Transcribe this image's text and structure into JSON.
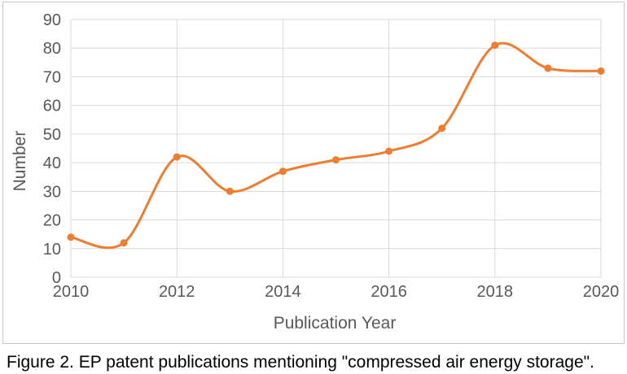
{
  "chart_data": {
    "type": "line",
    "title": "",
    "xlabel": "Publication Year",
    "ylabel": "Number",
    "x": [
      2010,
      2011,
      2012,
      2013,
      2014,
      2015,
      2016,
      2017,
      2018,
      2019,
      2020
    ],
    "values": [
      14,
      12,
      42,
      30,
      37,
      41,
      44,
      52,
      81,
      73,
      72
    ],
    "ylim": [
      0,
      90
    ],
    "ytick_step": 10,
    "xticks": [
      2010,
      2012,
      2014,
      2016,
      2018,
      2020
    ],
    "grid": true,
    "legend": "none",
    "smooth": true,
    "marker": "circle",
    "line_color": "#ED7D31",
    "marker_color": "#ED7D31",
    "gridline_color": "#D9D9D9",
    "axis_text_color": "#595959"
  },
  "figure": {
    "caption": "Figure 2. EP patent publications mentioning \"compressed air energy storage\"."
  }
}
